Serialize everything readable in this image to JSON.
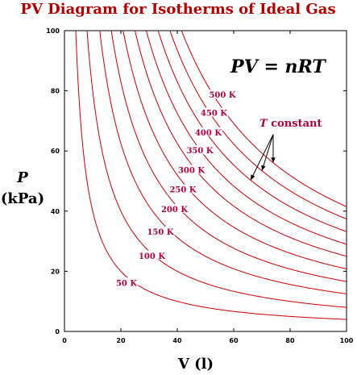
{
  "chart_data": {
    "type": "line",
    "title": "PV Diagram for Isotherms of Ideal Gas",
    "xlabel": "V (l)",
    "ylabel_symbol": "P",
    "ylabel_unit": "(kPa)",
    "xlim": [
      0,
      100
    ],
    "ylim": [
      0,
      100
    ],
    "xticks": [
      0,
      20,
      40,
      60,
      80,
      100
    ],
    "yticks": [
      0,
      20,
      40,
      60,
      80,
      100
    ],
    "grid": false,
    "equation": "PV = nRT",
    "annotation": "T constant",
    "annotation_T": "T",
    "annotation_rest": " constant",
    "colors": {
      "curve": "#cc0000",
      "label": "#b00040",
      "title": "#b00000",
      "axis": "#000000"
    },
    "series": [
      {
        "label": "50 K",
        "k": 400,
        "label_at": [
          22,
          16
        ]
      },
      {
        "label": "100 K",
        "k": 800,
        "label_at": [
          31,
          25
        ]
      },
      {
        "label": "150 K",
        "k": 1250,
        "label_at": [
          34,
          33
        ]
      },
      {
        "label": "200 K",
        "k": 1660,
        "label_at": [
          39,
          40.5
        ]
      },
      {
        "label": "250 K",
        "k": 2080,
        "label_at": [
          42,
          47
        ]
      },
      {
        "label": "300 K",
        "k": 2500,
        "label_at": [
          45,
          53.5
        ]
      },
      {
        "label": "350 K",
        "k": 2900,
        "label_at": [
          48,
          60
        ]
      },
      {
        "label": "400 K",
        "k": 3320,
        "label_at": [
          51,
          66
        ]
      },
      {
        "label": "450 K",
        "k": 3740,
        "label_at": [
          53,
          72.5
        ]
      },
      {
        "label": "500 K",
        "k": 4150,
        "label_at": [
          56,
          78.5
        ]
      }
    ]
  }
}
